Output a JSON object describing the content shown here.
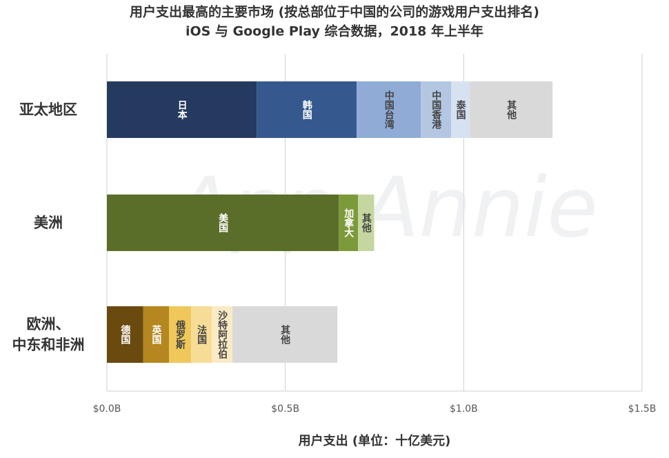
{
  "chart_data": {
    "type": "stacked-hbar",
    "title": "用户支出最高的主要市场 (按总部位于中国的公司的游戏用户支出排名)",
    "subtitle": "iOS 与 Google Play 综合数据，2018 年上半年",
    "xlabel": "用户支出 (单位：十亿美元)",
    "watermark": "App Annie",
    "xlim": [
      0,
      1.5
    ],
    "xticks": [
      {
        "value": 0,
        "label": "$0.0B"
      },
      {
        "value": 0.5,
        "label": "$0.5B"
      },
      {
        "value": 1,
        "label": "$1.0B"
      },
      {
        "value": 1.5,
        "label": "$1.5B"
      }
    ],
    "grid": true,
    "groups": [
      {
        "category": "亚太地区",
        "segments": [
          {
            "name": "日本",
            "value": 0.42,
            "color": "#243a5e"
          },
          {
            "name": "韩国",
            "value": 0.28,
            "color": "#35598f"
          },
          {
            "name": "中国台湾",
            "value": 0.18,
            "color": "#8fabd6"
          },
          {
            "name": "中国香港",
            "value": 0.085,
            "color": "#b3c7e2"
          },
          {
            "name": "泰国",
            "value": 0.052,
            "color": "#d6e2f1"
          },
          {
            "name": "其他",
            "value": 0.232,
            "color": "#d9d9d9"
          }
        ]
      },
      {
        "category": "美洲",
        "segments": [
          {
            "name": "美国",
            "value": 0.65,
            "color": "#5a6e2a"
          },
          {
            "name": "加拿大",
            "value": 0.054,
            "color": "#7d9a3a"
          },
          {
            "name": "其他",
            "value": 0.045,
            "color": "#c5d6a0"
          }
        ]
      },
      {
        "category": "欧洲、中东和非洲",
        "segments": [
          {
            "name": "德国",
            "value": 0.102,
            "color": "#6b4a10"
          },
          {
            "name": "英国",
            "value": 0.072,
            "color": "#b58720"
          },
          {
            "name": "俄罗斯",
            "value": 0.062,
            "color": "#f0c75a"
          },
          {
            "name": "法国",
            "value": 0.058,
            "color": "#f7dc97"
          },
          {
            "name": "沙特阿拉伯",
            "value": 0.058,
            "color": "#fbebc4"
          },
          {
            "name": "其他",
            "value": 0.294,
            "color": "#d9d9d9"
          }
        ]
      }
    ]
  }
}
